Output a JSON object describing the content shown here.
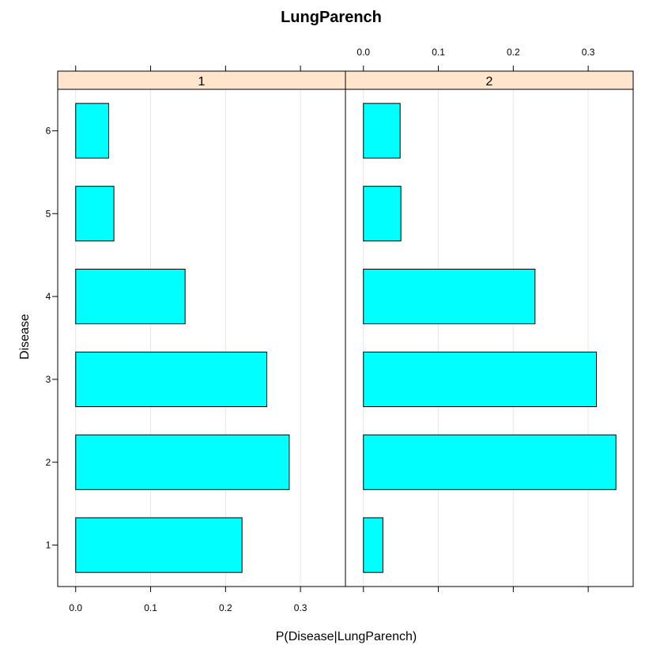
{
  "chart_data": {
    "type": "bar",
    "orientation": "horizontal",
    "title": "LungParench",
    "xlabel": "P(Disease|LungParench)",
    "ylabel": "Disease",
    "categories": [
      "1",
      "2",
      "3",
      "4",
      "5",
      "6"
    ],
    "xlim": [
      -0.024,
      0.36
    ],
    "xticks": [
      0.0,
      0.1,
      0.2,
      0.3
    ],
    "xtick_labels": [
      "0.0",
      "0.1",
      "0.2",
      "0.3"
    ],
    "grid": true,
    "panels": [
      {
        "strip": "1",
        "values": [
          0.222,
          0.285,
          0.255,
          0.146,
          0.051,
          0.044
        ]
      },
      {
        "strip": "2",
        "values": [
          0.026,
          0.337,
          0.311,
          0.229,
          0.05,
          0.049
        ]
      }
    ],
    "colors": {
      "bar_fill": "#00ffff",
      "strip_fill": "#ffe5cc",
      "grid": "#e6e6e6"
    }
  }
}
